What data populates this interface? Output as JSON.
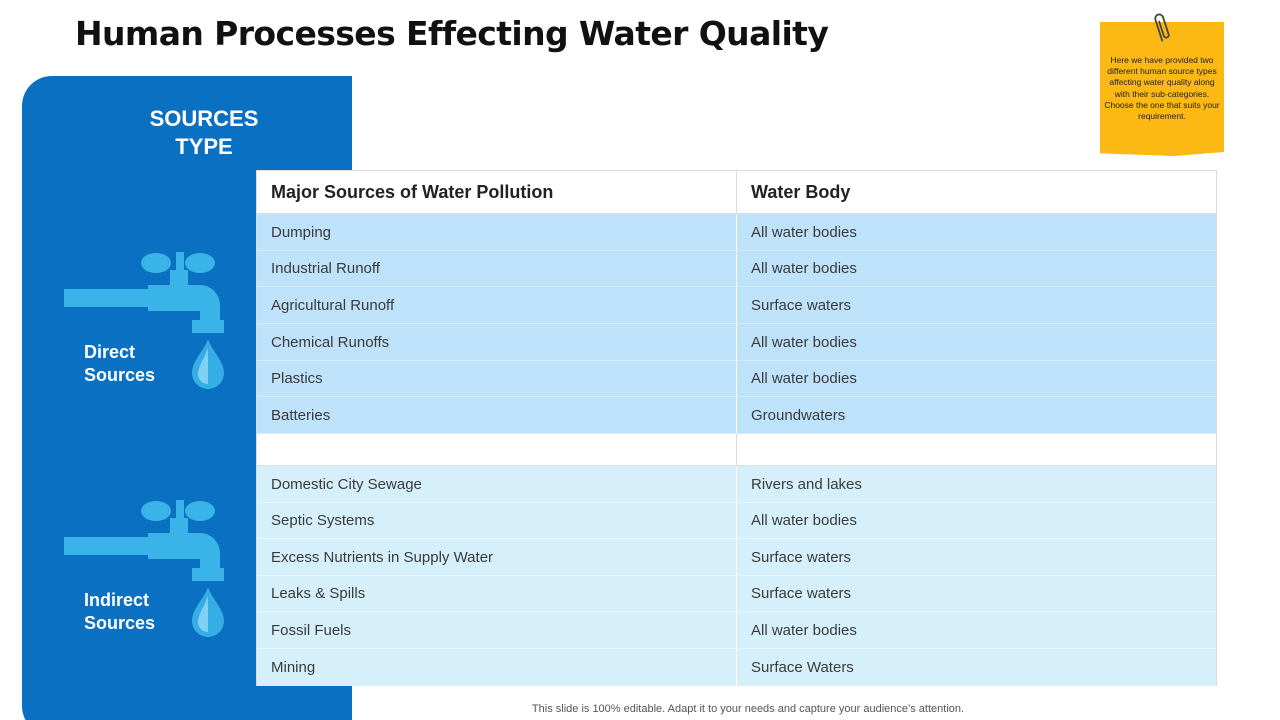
{
  "slide": {
    "title": "Human Processes Effecting Water Quality",
    "footer": "This slide is 100% editable. Adapt it to your needs and capture your audience’s attention."
  },
  "panel": {
    "heading_line1": "SOURCES",
    "heading_line2": "TYPE",
    "direct_line1": "Direct",
    "direct_line2": "Sources",
    "indirect_line1": "Indirect",
    "indirect_line2": "Sources",
    "icon_color": "#3ab3e8",
    "panel_color": "#0a70c2"
  },
  "note": {
    "text": "Here we have provided two different human source types affecting water quality along with their sub-categories. Choose the one that suits your requirement."
  },
  "table": {
    "headers": [
      "Major Sources of Water Pollution",
      "Water Body"
    ],
    "direct_rows": [
      [
        "Dumping",
        "All water bodies"
      ],
      [
        "Industrial Runoff",
        "All water bodies"
      ],
      [
        "Agricultural Runoff",
        "Surface waters"
      ],
      [
        "Chemical Runoffs",
        "All water bodies"
      ],
      [
        "Plastics",
        "All water bodies"
      ],
      [
        "Batteries",
        "Groundwaters"
      ]
    ],
    "indirect_rows": [
      [
        "Domestic City Sewage",
        "Rivers and lakes"
      ],
      [
        "Septic Systems",
        "All water bodies"
      ],
      [
        "Excess Nutrients in Supply Water",
        "Surface waters"
      ],
      [
        "Leaks & Spills",
        "Surface waters"
      ],
      [
        "Fossil Fuels",
        "All water bodies"
      ],
      [
        "Mining",
        "Surface Waters"
      ]
    ]
  }
}
